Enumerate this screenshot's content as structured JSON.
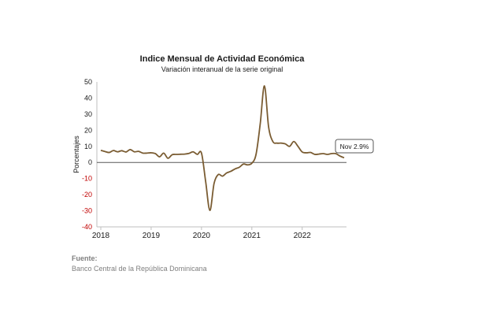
{
  "chart_data": {
    "type": "line",
    "title": "Indice Mensual de  Actividad Económica",
    "subtitle": "Variación interanual de la serie original",
    "xlabel": "",
    "ylabel": "Porcentajes",
    "ylim": [
      -40,
      50
    ],
    "yticks": [
      50,
      40,
      30,
      20,
      10,
      0,
      -10,
      -20,
      -30,
      -40
    ],
    "xticks": [
      "2018",
      "2019",
      "2020",
      "2021",
      "2022"
    ],
    "xlim": [
      "2018-01",
      "2022-11"
    ],
    "grid": false,
    "colors": {
      "line": "#7a5c32",
      "negative_ticks": "#c00000",
      "positive_ticks": "#1a1a1a",
      "zero_line": "#595959"
    },
    "series": [
      {
        "x": [
          "2018-01",
          "2018-02",
          "2018-03",
          "2018-04",
          "2018-05",
          "2018-06",
          "2018-07",
          "2018-08",
          "2018-09",
          "2018-10",
          "2018-11",
          "2018-12",
          "2019-01",
          "2019-02",
          "2019-03",
          "2019-04",
          "2019-05",
          "2019-06",
          "2019-07",
          "2019-08",
          "2019-09",
          "2019-10",
          "2019-11",
          "2019-12",
          "2020-01",
          "2020-02",
          "2020-03",
          "2020-04",
          "2020-05",
          "2020-06",
          "2020-07",
          "2020-08",
          "2020-09",
          "2020-10",
          "2020-11",
          "2020-12",
          "2021-01",
          "2021-02",
          "2021-03",
          "2021-04",
          "2021-05",
          "2021-06",
          "2021-07",
          "2021-08",
          "2021-09",
          "2021-10",
          "2021-11",
          "2021-12",
          "2022-01",
          "2022-02",
          "2022-03",
          "2022-04",
          "2022-05",
          "2022-06",
          "2022-07",
          "2022-08",
          "2022-09",
          "2022-10",
          "2022-11"
        ],
        "values": [
          7.5,
          6.8,
          6.2,
          7.4,
          6.6,
          7.3,
          6.5,
          8.0,
          6.6,
          6.9,
          5.8,
          5.8,
          6.0,
          5.5,
          3.5,
          5.8,
          2.6,
          4.8,
          5.0,
          5.1,
          5.2,
          5.6,
          6.6,
          5.0,
          5.8,
          -12.0,
          -29.8,
          -13.0,
          -7.5,
          -8.5,
          -6.5,
          -5.5,
          -4.0,
          -3.0,
          -1.0,
          -1.5,
          -0.5,
          5.0,
          24.0,
          47.5,
          22.0,
          13.0,
          12.0,
          12.0,
          11.5,
          10.0,
          13.0,
          10.0,
          6.5,
          6.0,
          6.2,
          5.0,
          5.2,
          5.5,
          5.0,
          5.5,
          5.5,
          4.0,
          2.9
        ]
      }
    ],
    "annotations": [
      {
        "text": "Nov 2.9%",
        "x": "2022-11",
        "y": 2.9
      }
    ]
  },
  "source": {
    "label": "Fuente:",
    "text": "Banco Central de la República Dominicana"
  }
}
